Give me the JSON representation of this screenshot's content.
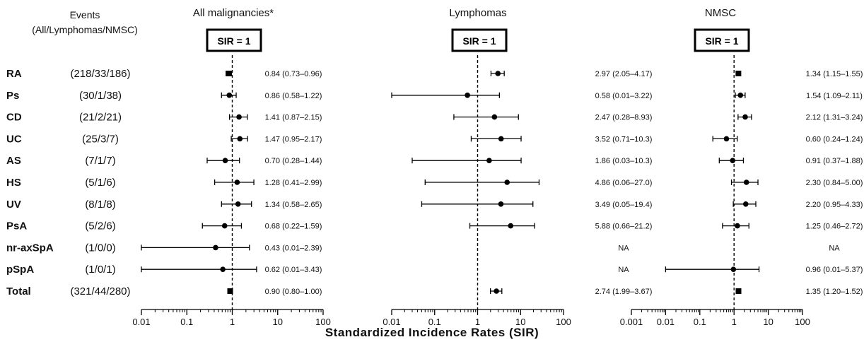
{
  "header": {
    "events_line1": "Events",
    "events_line2": "(All/Lymphomas/NMSC)",
    "sir_box_label": "SIR = 1"
  },
  "rows": [
    {
      "label": "RA",
      "events": "(218/33/186)"
    },
    {
      "label": "Ps",
      "events": "(30/1/38)"
    },
    {
      "label": "CD",
      "events": "(21/2/21)"
    },
    {
      "label": "UC",
      "events": "(25/3/7)"
    },
    {
      "label": "AS",
      "events": "(7/1/7)"
    },
    {
      "label": "HS",
      "events": "(5/1/6)"
    },
    {
      "label": "UV",
      "events": "(8/1/8)"
    },
    {
      "label": "PsA",
      "events": "(5/2/6)"
    },
    {
      "label": "nr-axSpA",
      "events": "(1/0/0)"
    },
    {
      "label": "pSpA",
      "events": "(1/0/1)"
    },
    {
      "label": "Total",
      "events": "(321/44/280)"
    }
  ],
  "xaxis_title": "Standardized Incidence Rates  (SIR)",
  "chart_data": [
    {
      "type": "forest",
      "title": "All malignancies*",
      "xscale": "log",
      "xlim": [
        0.01,
        100
      ],
      "ticks": [
        0.01,
        0.1,
        1,
        10,
        100
      ],
      "tick_labels": [
        "0.01",
        "0.1",
        "1",
        "10",
        "100"
      ],
      "reference_line": 1,
      "points": [
        {
          "category": "RA",
          "estimate": 0.84,
          "lower": 0.73,
          "upper": 0.96,
          "marker": "square",
          "label": "0.84 (0.73–0.96)"
        },
        {
          "category": "Ps",
          "estimate": 0.86,
          "lower": 0.58,
          "upper": 1.22,
          "marker": "circle",
          "label": "0.86 (0.58–1.22)"
        },
        {
          "category": "CD",
          "estimate": 1.41,
          "lower": 0.87,
          "upper": 2.15,
          "marker": "circle",
          "label": "1.41 (0.87–2.15)"
        },
        {
          "category": "UC",
          "estimate": 1.47,
          "lower": 0.95,
          "upper": 2.17,
          "marker": "circle",
          "label": "1.47 (0.95–2.17)"
        },
        {
          "category": "AS",
          "estimate": 0.7,
          "lower": 0.28,
          "upper": 1.44,
          "marker": "circle",
          "label": "0.70 (0.28–1.44)"
        },
        {
          "category": "HS",
          "estimate": 1.28,
          "lower": 0.41,
          "upper": 2.99,
          "marker": "circle",
          "label": "1.28 (0.41–2.99)"
        },
        {
          "category": "UV",
          "estimate": 1.34,
          "lower": 0.58,
          "upper": 2.65,
          "marker": "circle",
          "label": "1.34 (0.58–2.65)"
        },
        {
          "category": "PsA",
          "estimate": 0.68,
          "lower": 0.22,
          "upper": 1.59,
          "marker": "circle",
          "label": "0.68 (0.22–1.59)"
        },
        {
          "category": "nr-axSpA",
          "estimate": 0.43,
          "lower": 0.01,
          "upper": 2.39,
          "marker": "circle",
          "label": "0.43 (0.01–2.39)"
        },
        {
          "category": "pSpA",
          "estimate": 0.62,
          "lower": 0.01,
          "upper": 3.43,
          "marker": "circle",
          "label": "0.62 (0.01–3.43)"
        },
        {
          "category": "Total",
          "estimate": 0.9,
          "lower": 0.8,
          "upper": 1.0,
          "marker": "square",
          "label": "0.90 (0.80–1.00)"
        }
      ]
    },
    {
      "type": "forest",
      "title": "Lymphomas",
      "xscale": "log",
      "xlim": [
        0.01,
        100
      ],
      "ticks": [
        0.01,
        0.1,
        1,
        10,
        100
      ],
      "tick_labels": [
        "0.01",
        "0.1",
        "1",
        "10",
        "100"
      ],
      "reference_line": 1,
      "points": [
        {
          "category": "RA",
          "estimate": 2.97,
          "lower": 2.05,
          "upper": 4.17,
          "marker": "circle",
          "label": "2.97 (2.05–4.17)"
        },
        {
          "category": "Ps",
          "estimate": 0.58,
          "lower": 0.01,
          "upper": 3.22,
          "marker": "circle",
          "label": "0.58 (0.01–3.22)"
        },
        {
          "category": "CD",
          "estimate": 2.47,
          "lower": 0.28,
          "upper": 8.93,
          "marker": "circle",
          "label": "2.47 (0.28–8.93)"
        },
        {
          "category": "UC",
          "estimate": 3.52,
          "lower": 0.71,
          "upper": 10.3,
          "marker": "circle",
          "label": "3.52 (0.71–10.3)"
        },
        {
          "category": "AS",
          "estimate": 1.86,
          "lower": 0.03,
          "upper": 10.3,
          "marker": "circle",
          "label": "1.86 (0.03–10.3)"
        },
        {
          "category": "HS",
          "estimate": 4.86,
          "lower": 0.06,
          "upper": 27.0,
          "marker": "circle",
          "label": "4.86 (0.06–27.0)"
        },
        {
          "category": "UV",
          "estimate": 3.49,
          "lower": 0.05,
          "upper": 19.4,
          "marker": "circle",
          "label": "3.49 (0.05–19.4)"
        },
        {
          "category": "PsA",
          "estimate": 5.88,
          "lower": 0.66,
          "upper": 21.2,
          "marker": "circle",
          "label": "5.88 (0.66–21.2)"
        },
        {
          "category": "nr-axSpA",
          "estimate": null,
          "lower": null,
          "upper": null,
          "marker": "none",
          "label": "NA"
        },
        {
          "category": "pSpA",
          "estimate": null,
          "lower": null,
          "upper": null,
          "marker": "none",
          "label": "NA"
        },
        {
          "category": "Total",
          "estimate": 2.74,
          "lower": 1.99,
          "upper": 3.67,
          "marker": "circle",
          "label": "2.74 (1.99–3.67)"
        }
      ]
    },
    {
      "type": "forest",
      "title": "NMSC",
      "xscale": "log",
      "xlim": [
        0.001,
        100
      ],
      "ticks": [
        0.001,
        0.01,
        0.1,
        1,
        10,
        100
      ],
      "tick_labels": [
        "0.001",
        "0.01",
        "0.1",
        "1",
        "10",
        "100"
      ],
      "reference_line": 1,
      "points": [
        {
          "category": "RA",
          "estimate": 1.34,
          "lower": 1.15,
          "upper": 1.55,
          "marker": "square",
          "label": "1.34 (1.15–1.55)"
        },
        {
          "category": "Ps",
          "estimate": 1.54,
          "lower": 1.09,
          "upper": 2.11,
          "marker": "circle",
          "label": "1.54 (1.09–2.11)"
        },
        {
          "category": "CD",
          "estimate": 2.12,
          "lower": 1.31,
          "upper": 3.24,
          "marker": "circle",
          "label": "2.12 (1.31–3.24)"
        },
        {
          "category": "UC",
          "estimate": 0.6,
          "lower": 0.24,
          "upper": 1.24,
          "marker": "circle",
          "label": "0.60 (0.24–1.24)"
        },
        {
          "category": "AS",
          "estimate": 0.91,
          "lower": 0.37,
          "upper": 1.88,
          "marker": "circle",
          "label": "0.91 (0.37–1.88)"
        },
        {
          "category": "HS",
          "estimate": 2.3,
          "lower": 0.84,
          "upper": 5.0,
          "marker": "circle",
          "label": "2.30 (0.84–5.00)"
        },
        {
          "category": "UV",
          "estimate": 2.2,
          "lower": 0.95,
          "upper": 4.33,
          "marker": "circle",
          "label": "2.20 (0.95–4.33)"
        },
        {
          "category": "PsA",
          "estimate": 1.25,
          "lower": 0.46,
          "upper": 2.72,
          "marker": "circle",
          "label": "1.25 (0.46–2.72)"
        },
        {
          "category": "nr-axSpA",
          "estimate": null,
          "lower": null,
          "upper": null,
          "marker": "none",
          "label": "NA"
        },
        {
          "category": "pSpA",
          "estimate": 0.96,
          "lower": 0.01,
          "upper": 5.37,
          "marker": "circle",
          "label": "0.96 (0.01–5.37)"
        },
        {
          "category": "Total",
          "estimate": 1.35,
          "lower": 1.2,
          "upper": 1.52,
          "marker": "square",
          "label": "1.35 (1.20–1.52)"
        }
      ]
    }
  ]
}
